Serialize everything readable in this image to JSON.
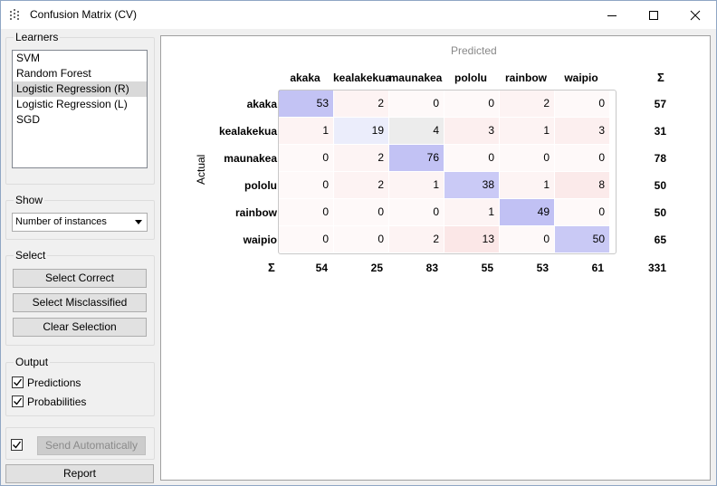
{
  "window": {
    "title": "Confusion Matrix (CV)"
  },
  "learners": {
    "title": "Learners",
    "items": [
      {
        "label": "SVM",
        "selected": false
      },
      {
        "label": "Random Forest",
        "selected": false
      },
      {
        "label": "Logistic Regression (R)",
        "selected": true
      },
      {
        "label": "Logistic Regression (L)",
        "selected": false
      },
      {
        "label": "SGD",
        "selected": false
      }
    ]
  },
  "show": {
    "title": "Show",
    "selected": "Number of instances"
  },
  "select": {
    "title": "Select",
    "correct_label": "Select Correct",
    "misclassified_label": "Select Misclassified",
    "clear_label": "Clear Selection"
  },
  "output": {
    "title": "Output",
    "predictions_label": "Predictions",
    "predictions_checked": true,
    "probabilities_label": "Probabilities",
    "probabilities_checked": true
  },
  "send": {
    "checked": true,
    "label": "Send Automatically"
  },
  "report_label": "Report",
  "matrix": {
    "predicted_label": "Predicted",
    "actual_label": "Actual",
    "sigma": "Σ",
    "classes": [
      "akaka",
      "kealakekua",
      "maunakea",
      "pololu",
      "rainbow",
      "waipio"
    ],
    "rows": [
      [
        53,
        2,
        0,
        0,
        2,
        0
      ],
      [
        1,
        19,
        4,
        3,
        1,
        3
      ],
      [
        0,
        2,
        76,
        0,
        0,
        0
      ],
      [
        0,
        2,
        1,
        38,
        1,
        8
      ],
      [
        0,
        0,
        0,
        1,
        49,
        0
      ],
      [
        0,
        0,
        2,
        13,
        0,
        50
      ]
    ],
    "row_sums": [
      57,
      31,
      78,
      50,
      50,
      65
    ],
    "col_sums": [
      54,
      25,
      83,
      55,
      53,
      61
    ],
    "total": 331
  }
}
